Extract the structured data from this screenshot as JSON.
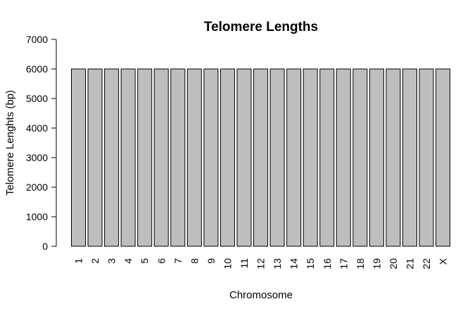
{
  "chart_data": {
    "type": "bar",
    "title": "Telomere Lengths",
    "xlabel": "Chromosome",
    "ylabel": "Telomere Lenghts (bp)",
    "categories": [
      "1",
      "2",
      "3",
      "4",
      "5",
      "6",
      "7",
      "8",
      "9",
      "10",
      "11",
      "12",
      "13",
      "14",
      "15",
      "16",
      "17",
      "18",
      "19",
      "20",
      "21",
      "22",
      "X"
    ],
    "values": [
      6000,
      6000,
      6000,
      6000,
      6000,
      6000,
      6000,
      6000,
      6000,
      6000,
      6000,
      6000,
      6000,
      6000,
      6000,
      6000,
      6000,
      6000,
      6000,
      6000,
      6000,
      6000,
      6000
    ],
    "ylim": [
      0,
      7000
    ],
    "yticks": [
      0,
      1000,
      2000,
      3000,
      4000,
      5000,
      6000,
      7000
    ],
    "grid": false,
    "colors": {
      "bar_fill": "#bebebe",
      "bar_stroke": "#000000"
    }
  }
}
